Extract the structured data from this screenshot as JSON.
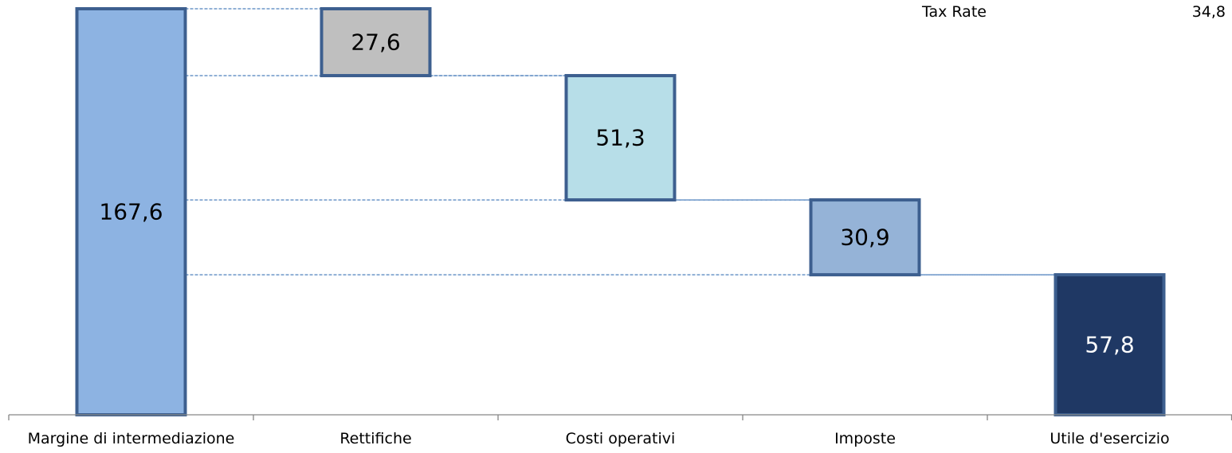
{
  "chart_data": {
    "type": "waterfall",
    "title": "",
    "xlabel": "",
    "ylabel": "",
    "categories": [
      "Margine di intermediazione",
      "Rettifiche",
      "Costi operativi",
      "Imposte",
      "Utile d'esercizio"
    ],
    "values": [
      167.6,
      -27.6,
      -51.3,
      -30.9,
      57.8
    ],
    "value_labels": [
      "167,6",
      "27,6",
      "51,3",
      "30,9",
      "57,8"
    ],
    "bar_kinds": [
      "total",
      "decrease",
      "decrease",
      "decrease",
      "total"
    ],
    "colors": [
      "#8DB3E2",
      "#BFBFBF",
      "#B7DEE8",
      "#95B3D7",
      "#1F3864"
    ],
    "border_color": "#3D5F8F",
    "label_colors": [
      "#000000",
      "#000000",
      "#000000",
      "#000000",
      "#FFFFFF"
    ],
    "connector_color": "#4F81BD",
    "ylim": [
      0,
      167.6
    ],
    "grid": false,
    "annotation": {
      "label": "Tax Rate",
      "value": "34,8"
    }
  }
}
